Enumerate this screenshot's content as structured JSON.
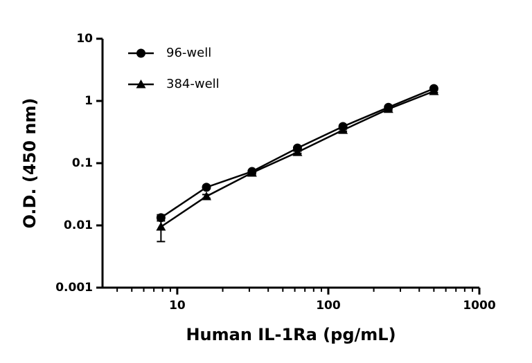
{
  "chart_data": {
    "type": "line",
    "x_label": "Human IL-1Ra (pg/mL)",
    "y_label": "O.D. (450 nm)",
    "x": [
      7.8,
      15.6,
      31.25,
      62.5,
      125,
      250,
      500
    ],
    "series": [
      {
        "name": "96-well",
        "color": "#000000",
        "marker": "circle",
        "values": [
          0.0133,
          0.041,
          0.0735,
          0.175,
          0.388,
          0.79,
          1.58
        ],
        "errors": [
          0.0015,
          0.002,
          0.003,
          0.006,
          0.012,
          0.03,
          0.06
        ]
      },
      {
        "name": "384-well",
        "color": "#000000",
        "marker": "triangle",
        "values": [
          0.0095,
          0.0293,
          0.07,
          0.15,
          0.34,
          0.74,
          1.43
        ],
        "errors": [
          0.004,
          0.002,
          0.003,
          0.006,
          0.012,
          0.03,
          0.06
        ]
      }
    ],
    "xscale": "log",
    "yscale": "log",
    "xlim": [
      3.2,
      1000
    ],
    "ylim": [
      0.001,
      10
    ],
    "xticks": [
      10,
      100,
      1000
    ],
    "xminorticks": [
      4,
      5,
      6,
      7,
      8,
      9,
      20,
      30,
      40,
      50,
      60,
      70,
      80,
      90,
      200,
      300,
      400,
      500,
      600,
      700,
      800,
      900
    ],
    "yticks": [
      0.001,
      0.01,
      0.1,
      1,
      10
    ],
    "legend": "upper-left",
    "grid": false
  }
}
